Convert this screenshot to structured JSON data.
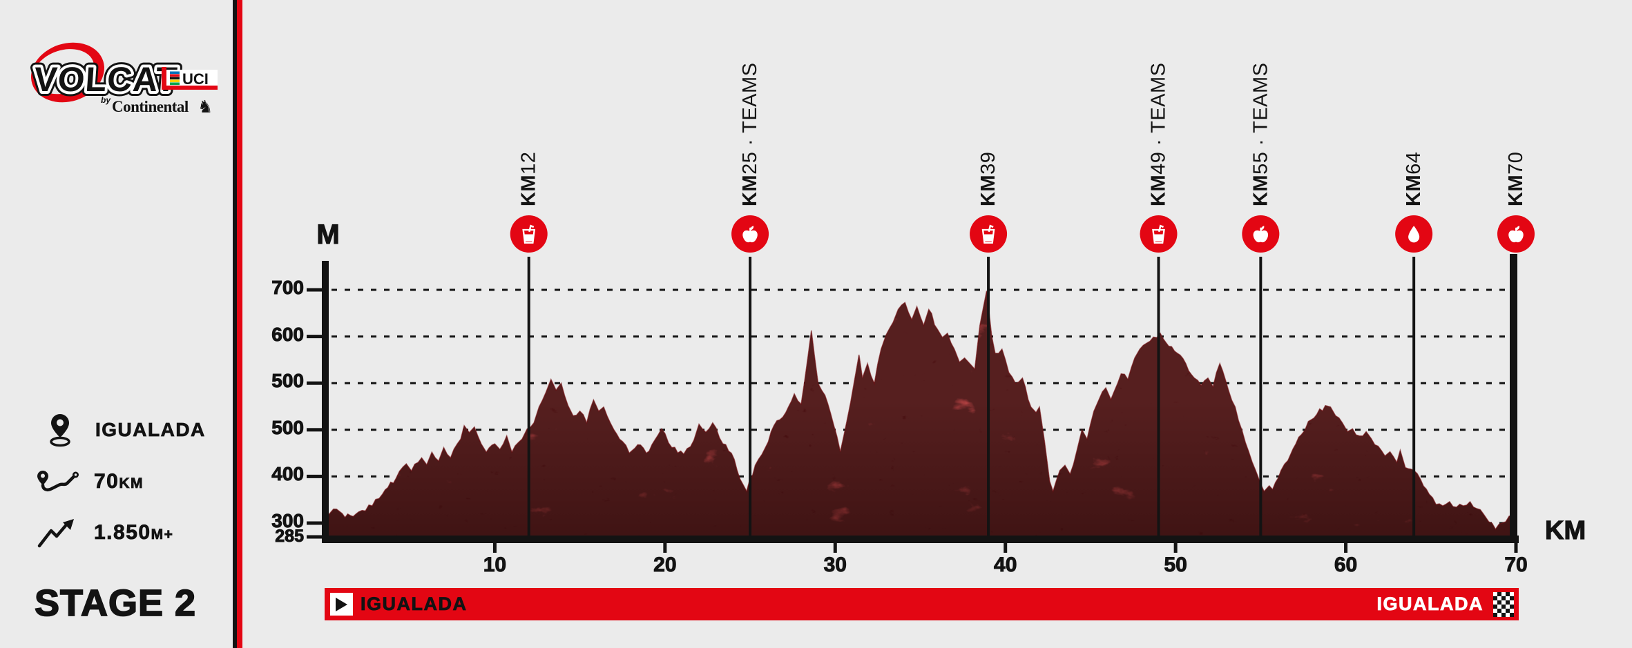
{
  "logo": {
    "title": "VOLCAT",
    "uci": "UCI",
    "by": "by",
    "brand": "Continental",
    "horse_icon": "horse-icon"
  },
  "sidebar": {
    "stats": [
      {
        "icon": "location-pin-icon",
        "value": "IGUALADA",
        "unit": ""
      },
      {
        "icon": "route-icon",
        "value": "70",
        "unit": "KM"
      },
      {
        "icon": "climb-icon",
        "value": "1.850",
        "unit": "M+"
      }
    ],
    "stage_title": "STAGE 2"
  },
  "chart": {
    "y_axis_title": "M",
    "x_axis_title": "KM",
    "y_tick_labels": [
      "700",
      "600",
      "500",
      "500",
      "400",
      "300"
    ],
    "y_base_label": "285",
    "x_tick_labels": [
      "10",
      "20",
      "30",
      "40",
      "50",
      "60",
      "70"
    ],
    "markers": [
      {
        "km": 12,
        "prefix": "KM",
        "rest": "12",
        "icon": "drink-icon"
      },
      {
        "km": 25,
        "prefix": "KM",
        "rest": "25 · TEAMS",
        "icon": "apple-icon"
      },
      {
        "km": 39,
        "prefix": "KM",
        "rest": "39",
        "icon": "drink-icon"
      },
      {
        "km": 49,
        "prefix": "KM",
        "rest": "49 · TEAMS",
        "icon": "drink-icon"
      },
      {
        "km": 55,
        "prefix": "KM",
        "rest": "55 · TEAMS",
        "icon": "apple-icon"
      },
      {
        "km": 64,
        "prefix": "KM",
        "rest": "64",
        "icon": "drop-icon"
      },
      {
        "km": 70,
        "prefix": "KM",
        "rest": "70",
        "icon": "apple-icon"
      }
    ],
    "colors": {
      "accent_red": "#e30613",
      "profile_red": "#9e1a1d",
      "ink": "#131313",
      "background": "#ebebeb"
    }
  },
  "chart_data": {
    "type": "area",
    "title": "VOLCAT Stage 2 elevation profile",
    "xlabel": "KM",
    "ylabel": "M",
    "x_range": [
      0,
      70
    ],
    "y_tick_labels_as_printed": [
      "700",
      "600",
      "500",
      "500",
      "400",
      "300",
      "285"
    ],
    "grid": "dashed-horizontal",
    "profile": [
      [
        0,
        315
      ],
      [
        0.7,
        330
      ],
      [
        1.2,
        312
      ],
      [
        2,
        324
      ],
      [
        2.8,
        337
      ],
      [
        3.4,
        362
      ],
      [
        4.2,
        396
      ],
      [
        4.8,
        427
      ],
      [
        5.1,
        412
      ],
      [
        5.7,
        440
      ],
      [
        6.0,
        425
      ],
      [
        6.3,
        452
      ],
      [
        6.7,
        433
      ],
      [
        7.0,
        462
      ],
      [
        7.4,
        440
      ],
      [
        8.0,
        480
      ],
      [
        8.2,
        509
      ],
      [
        8.5,
        494
      ],
      [
        8.8,
        506
      ],
      [
        9.2,
        470
      ],
      [
        9.5,
        452
      ],
      [
        10.0,
        470
      ],
      [
        10.3,
        458
      ],
      [
        10.7,
        487
      ],
      [
        11.0,
        452
      ],
      [
        11.6,
        480
      ],
      [
        11.9,
        502
      ],
      [
        12.3,
        515
      ],
      [
        12.6,
        549
      ],
      [
        13.0,
        580
      ],
      [
        13.3,
        608
      ],
      [
        13.6,
        585
      ],
      [
        13.9,
        600
      ],
      [
        14.3,
        552
      ],
      [
        14.6,
        530
      ],
      [
        15.0,
        540
      ],
      [
        15.4,
        515
      ],
      [
        15.8,
        564
      ],
      [
        16.1,
        540
      ],
      [
        16.4,
        549
      ],
      [
        17.0,
        500
      ],
      [
        17.5,
        475
      ],
      [
        17.9,
        450
      ],
      [
        18.4,
        468
      ],
      [
        18.9,
        450
      ],
      [
        19.4,
        478
      ],
      [
        19.8,
        502
      ],
      [
        20.4,
        462
      ],
      [
        21.1,
        448
      ],
      [
        21.7,
        478
      ],
      [
        22.0,
        512
      ],
      [
        22.4,
        495
      ],
      [
        22.8,
        515
      ],
      [
        23.4,
        470
      ],
      [
        23.9,
        450
      ],
      [
        24.4,
        395
      ],
      [
        24.8,
        368
      ],
      [
        25.3,
        424
      ],
      [
        25.9,
        462
      ],
      [
        26.4,
        509
      ],
      [
        27.1,
        537
      ],
      [
        27.6,
        577
      ],
      [
        28.0,
        555
      ],
      [
        28.6,
        713
      ],
      [
        29.0,
        599
      ],
      [
        29.4,
        574
      ],
      [
        29.9,
        512
      ],
      [
        30.3,
        453
      ],
      [
        30.7,
        521
      ],
      [
        31.1,
        599
      ],
      [
        31.4,
        661
      ],
      [
        31.6,
        611
      ],
      [
        31.9,
        642
      ],
      [
        32.3,
        599
      ],
      [
        32.7,
        673
      ],
      [
        33.0,
        704
      ],
      [
        33.4,
        730
      ],
      [
        33.7,
        758
      ],
      [
        34.1,
        773
      ],
      [
        34.5,
        736
      ],
      [
        34.8,
        764
      ],
      [
        35.2,
        724
      ],
      [
        35.5,
        758
      ],
      [
        36.0,
        716
      ],
      [
        36.3,
        698
      ],
      [
        36.6,
        707
      ],
      [
        37.0,
        673
      ],
      [
        37.3,
        645
      ],
      [
        37.6,
        654
      ],
      [
        37.9,
        642
      ],
      [
        38.2,
        630
      ],
      [
        38.5,
        724
      ],
      [
        38.9,
        798
      ],
      [
        39.2,
        700
      ],
      [
        39.4,
        664
      ],
      [
        39.8,
        673
      ],
      [
        40.2,
        623
      ],
      [
        40.6,
        599
      ],
      [
        41.0,
        611
      ],
      [
        41.5,
        549
      ],
      [
        41.8,
        537
      ],
      [
        42.0,
        549
      ],
      [
        42.3,
        475
      ],
      [
        42.6,
        390
      ],
      [
        42.8,
        368
      ],
      [
        43.2,
        413
      ],
      [
        43.5,
        424
      ],
      [
        43.8,
        405
      ],
      [
        44.2,
        455
      ],
      [
        44.5,
        500
      ],
      [
        44.8,
        480
      ],
      [
        45.2,
        540
      ],
      [
        45.5,
        565
      ],
      [
        45.9,
        590
      ],
      [
        46.2,
        565
      ],
      [
        46.6,
        600
      ],
      [
        46.8,
        620
      ],
      [
        47.2,
        608
      ],
      [
        47.6,
        654
      ],
      [
        47.9,
        673
      ],
      [
        48.5,
        690
      ],
      [
        49.1,
        707
      ],
      [
        49.6,
        679
      ],
      [
        50.1,
        664
      ],
      [
        50.6,
        642
      ],
      [
        51.1,
        611
      ],
      [
        51.5,
        595
      ],
      [
        51.9,
        611
      ],
      [
        52.2,
        592
      ],
      [
        52.6,
        642
      ],
      [
        53.1,
        586
      ],
      [
        53.5,
        549
      ],
      [
        53.9,
        499
      ],
      [
        54.3,
        453
      ],
      [
        54.7,
        413
      ],
      [
        55.0,
        384
      ],
      [
        55.2,
        368
      ],
      [
        55.5,
        380
      ],
      [
        55.7,
        372
      ],
      [
        56.2,
        413
      ],
      [
        56.6,
        434
      ],
      [
        56.9,
        459
      ],
      [
        57.4,
        490
      ],
      [
        57.8,
        518
      ],
      [
        58.3,
        533
      ],
      [
        58.8,
        552
      ],
      [
        59.1,
        549
      ],
      [
        59.4,
        530
      ],
      [
        59.8,
        515
      ],
      [
        60.1,
        496
      ],
      [
        60.4,
        502
      ],
      [
        60.8,
        487
      ],
      [
        61.2,
        496
      ],
      [
        61.5,
        481
      ],
      [
        61.9,
        465
      ],
      [
        62.3,
        444
      ],
      [
        62.6,
        453
      ],
      [
        63.0,
        430
      ],
      [
        63.2,
        456
      ],
      [
        63.5,
        419
      ],
      [
        64.0,
        413
      ],
      [
        64.4,
        393
      ],
      [
        64.9,
        362
      ],
      [
        65.3,
        340
      ],
      [
        65.7,
        337
      ],
      [
        66.1,
        346
      ],
      [
        66.5,
        334
      ],
      [
        66.9,
        337
      ],
      [
        67.3,
        346
      ],
      [
        67.7,
        331
      ],
      [
        68.1,
        319
      ],
      [
        68.4,
        303
      ],
      [
        68.8,
        287
      ],
      [
        69.2,
        300
      ],
      [
        69.6,
        315
      ],
      [
        70,
        322
      ]
    ]
  },
  "footer": {
    "start": "IGUALADA",
    "finish": "IGUALADA"
  }
}
